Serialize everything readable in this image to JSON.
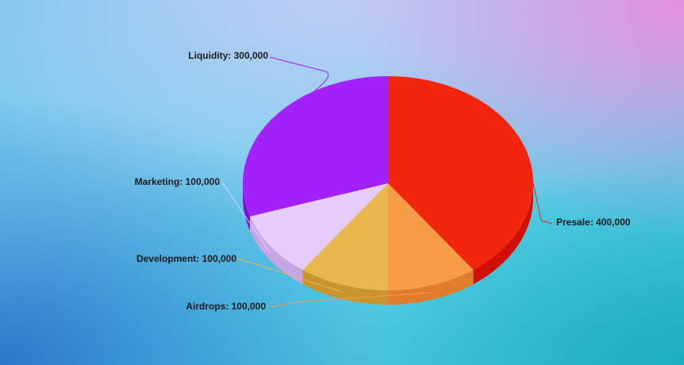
{
  "chart_data": {
    "type": "pie",
    "title": "",
    "unit": "",
    "slices": [
      {
        "label": "Presale",
        "value": 400000,
        "display": "Presale: 400,000",
        "color": "#f2260f",
        "side": "#d10f08"
      },
      {
        "label": "Airdrops",
        "value": 100000,
        "display": "Airdrops: 100,000",
        "color": "#f79c47",
        "side": "#e07c2c"
      },
      {
        "label": "Development",
        "value": 100000,
        "display": "Development: 100,000",
        "color": "#e9b74c",
        "side": "#c8952e"
      },
      {
        "label": "Marketing",
        "value": 100000,
        "display": "Marketing: 100,000",
        "color": "#e6cdfb",
        "side": "#c8a6e6"
      },
      {
        "label": "Liquidity",
        "value": 300000,
        "display": "Liquidity: 300,000",
        "color": "#a322fb",
        "side": "#7d12cc"
      }
    ],
    "style": "3d-pie"
  }
}
